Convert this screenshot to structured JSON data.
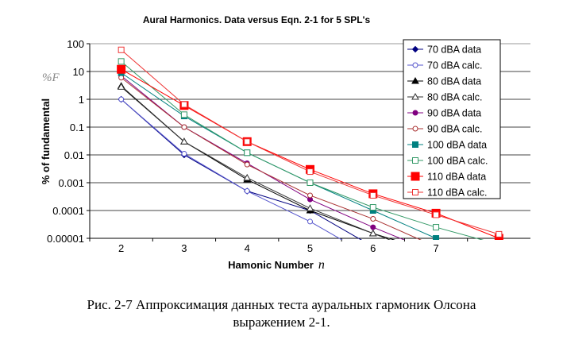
{
  "chart_data": {
    "type": "line",
    "title": "Aural Harmonics. Data versus Eqn. 2-1 for 5 SPL's",
    "xlabel": "Hamonic Number",
    "xlabel_var": "n",
    "ylabel": "% of fundamental",
    "ylabel_symbol": "%F",
    "yscale": "log",
    "ylim": [
      1e-05,
      100
    ],
    "yticks": [
      "100",
      "10",
      "1",
      "0.1",
      "0.01",
      "0.001",
      "0.0001",
      "0.00001"
    ],
    "xlim": [
      1.5,
      8.5
    ],
    "xticks": [
      "2",
      "3",
      "4",
      "5",
      "6",
      "7"
    ],
    "grid": true,
    "legend_position": "top-right",
    "x": [
      2,
      3,
      4,
      5,
      6,
      7,
      8
    ],
    "series": [
      {
        "name": "70 dBA data",
        "color": "#000080",
        "marker": "diamond",
        "filled": true,
        "values": [
          1,
          0.01,
          0.0005,
          0.0001,
          5e-06,
          null,
          null
        ]
      },
      {
        "name": "70 dBA calc.",
        "color": "#5555cc",
        "marker": "circle",
        "filled": false,
        "values": [
          1,
          0.011,
          0.0005,
          4e-05,
          2e-06,
          null,
          null
        ]
      },
      {
        "name": "80 dBA data",
        "color": "#000000",
        "marker": "triangle",
        "filled": true,
        "values": [
          3,
          0.03,
          0.0013,
          0.0001,
          1.5e-05,
          3e-06,
          null
        ]
      },
      {
        "name": "80 dBA calc.",
        "color": "#333333",
        "marker": "triangle",
        "filled": false,
        "values": [
          2.8,
          0.03,
          0.0015,
          0.00012,
          1.5e-05,
          2e-06,
          null
        ]
      },
      {
        "name": "90 dBA data",
        "color": "#800080",
        "marker": "circle",
        "filled": true,
        "values": [
          7,
          0.1,
          0.005,
          0.00025,
          2.5e-05,
          3e-06,
          null
        ]
      },
      {
        "name": "90 dBA calc.",
        "color": "#aa3333",
        "marker": "circle",
        "filled": false,
        "values": [
          6,
          0.1,
          0.0045,
          0.00035,
          5e-05,
          5e-06,
          null
        ]
      },
      {
        "name": "100 dBA data",
        "color": "#008080",
        "marker": "square",
        "filled": true,
        "values": [
          9,
          0.25,
          0.012,
          0.001,
          0.0001,
          1e-05,
          null
        ]
      },
      {
        "name": "100 dBA calc.",
        "color": "#339966",
        "marker": "square",
        "filled": false,
        "values": [
          23,
          0.28,
          0.012,
          0.001,
          0.00013,
          2.5e-05,
          6e-06
        ]
      },
      {
        "name": "110 dBA data",
        "color": "#ff0000",
        "marker": "square-big",
        "filled": true,
        "values": [
          12,
          0.6,
          0.03,
          0.003,
          0.0004,
          8e-05,
          1e-05
        ]
      },
      {
        "name": "110 dBA calc.",
        "color": "#ee3333",
        "marker": "square",
        "filled": false,
        "values": [
          60,
          0.65,
          0.03,
          0.0025,
          0.00035,
          7e-05,
          1.4e-05
        ]
      }
    ]
  },
  "caption": {
    "line1": "Рис. 2-7 Аппроксимация данных теста ауральных гармоник Олсона",
    "line2": "выражением 2-1."
  }
}
